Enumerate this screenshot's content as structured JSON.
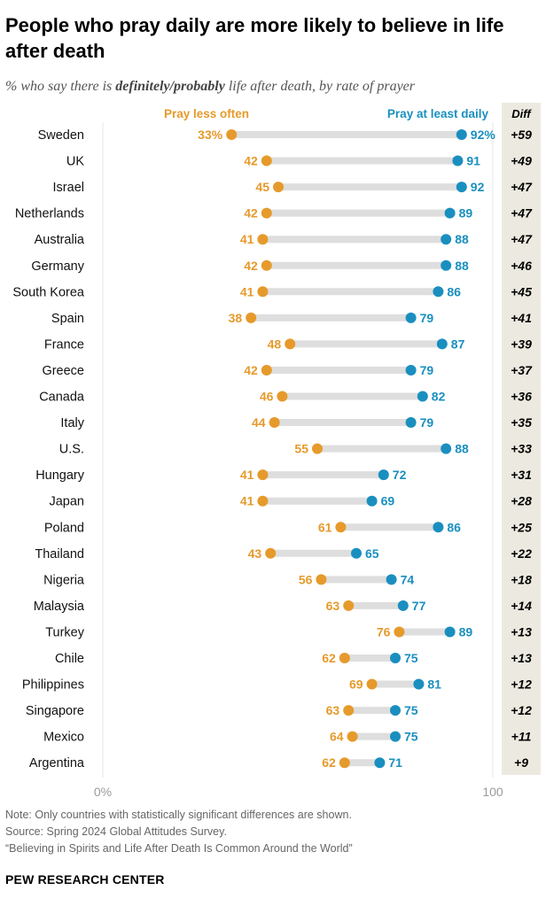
{
  "title": "People who pray daily are more likely to believe in life after death",
  "subtitle": {
    "prefix": "% who say there is ",
    "emphasis": "definitely/probably",
    "suffix": " life after death, by rate of prayer"
  },
  "chart_data": {
    "type": "dot-plot",
    "series": [
      {
        "name": "Pray less often",
        "color": "#E69A2B"
      },
      {
        "name": "Pray at least daily",
        "color": "#1A8FBF"
      }
    ],
    "diff_header": "Diff",
    "xlim": [
      0,
      100
    ],
    "x_ticks": [
      {
        "value": 0,
        "label": "0%"
      },
      {
        "value": 100,
        "label": "100"
      }
    ],
    "rows": [
      {
        "country": "Sweden",
        "less": 33,
        "daily": 92,
        "less_label": "33%",
        "daily_label": "92%",
        "diff": "+59"
      },
      {
        "country": "UK",
        "less": 42,
        "daily": 91,
        "less_label": "42",
        "daily_label": "91",
        "diff": "+49"
      },
      {
        "country": "Israel",
        "less": 45,
        "daily": 92,
        "less_label": "45",
        "daily_label": "92",
        "diff": "+47"
      },
      {
        "country": "Netherlands",
        "less": 42,
        "daily": 89,
        "less_label": "42",
        "daily_label": "89",
        "diff": "+47"
      },
      {
        "country": "Australia",
        "less": 41,
        "daily": 88,
        "less_label": "41",
        "daily_label": "88",
        "diff": "+47"
      },
      {
        "country": "Germany",
        "less": 42,
        "daily": 88,
        "less_label": "42",
        "daily_label": "88",
        "diff": "+46"
      },
      {
        "country": "South Korea",
        "less": 41,
        "daily": 86,
        "less_label": "41",
        "daily_label": "86",
        "diff": "+45"
      },
      {
        "country": "Spain",
        "less": 38,
        "daily": 79,
        "less_label": "38",
        "daily_label": "79",
        "diff": "+41"
      },
      {
        "country": "France",
        "less": 48,
        "daily": 87,
        "less_label": "48",
        "daily_label": "87",
        "diff": "+39"
      },
      {
        "country": "Greece",
        "less": 42,
        "daily": 79,
        "less_label": "42",
        "daily_label": "79",
        "diff": "+37"
      },
      {
        "country": "Canada",
        "less": 46,
        "daily": 82,
        "less_label": "46",
        "daily_label": "82",
        "diff": "+36"
      },
      {
        "country": "Italy",
        "less": 44,
        "daily": 79,
        "less_label": "44",
        "daily_label": "79",
        "diff": "+35"
      },
      {
        "country": "U.S.",
        "less": 55,
        "daily": 88,
        "less_label": "55",
        "daily_label": "88",
        "diff": "+33"
      },
      {
        "country": "Hungary",
        "less": 41,
        "daily": 72,
        "less_label": "41",
        "daily_label": "72",
        "diff": "+31"
      },
      {
        "country": "Japan",
        "less": 41,
        "daily": 69,
        "less_label": "41",
        "daily_label": "69",
        "diff": "+28"
      },
      {
        "country": "Poland",
        "less": 61,
        "daily": 86,
        "less_label": "61",
        "daily_label": "86",
        "diff": "+25"
      },
      {
        "country": "Thailand",
        "less": 43,
        "daily": 65,
        "less_label": "43",
        "daily_label": "65",
        "diff": "+22"
      },
      {
        "country": "Nigeria",
        "less": 56,
        "daily": 74,
        "less_label": "56",
        "daily_label": "74",
        "diff": "+18"
      },
      {
        "country": "Malaysia",
        "less": 63,
        "daily": 77,
        "less_label": "63",
        "daily_label": "77",
        "diff": "+14"
      },
      {
        "country": "Turkey",
        "less": 76,
        "daily": 89,
        "less_label": "76",
        "daily_label": "89",
        "diff": "+13"
      },
      {
        "country": "Chile",
        "less": 62,
        "daily": 75,
        "less_label": "62",
        "daily_label": "75",
        "diff": "+13"
      },
      {
        "country": "Philippines",
        "less": 69,
        "daily": 81,
        "less_label": "69",
        "daily_label": "81",
        "diff": "+12"
      },
      {
        "country": "Singapore",
        "less": 63,
        "daily": 75,
        "less_label": "63",
        "daily_label": "75",
        "diff": "+12"
      },
      {
        "country": "Mexico",
        "less": 64,
        "daily": 75,
        "less_label": "64",
        "daily_label": "75",
        "diff": "+11"
      },
      {
        "country": "Argentina",
        "less": 62,
        "daily": 71,
        "less_label": "62",
        "daily_label": "71",
        "diff": "+9"
      }
    ]
  },
  "notes": [
    "Note: Only countries with statistically significant differences are shown.",
    "Source: Spring 2024 Global Attitudes Survey.",
    "“Believing in Spirits and Life After Death Is Common Around the World”"
  ],
  "source_org": "PEW RESEARCH CENTER"
}
